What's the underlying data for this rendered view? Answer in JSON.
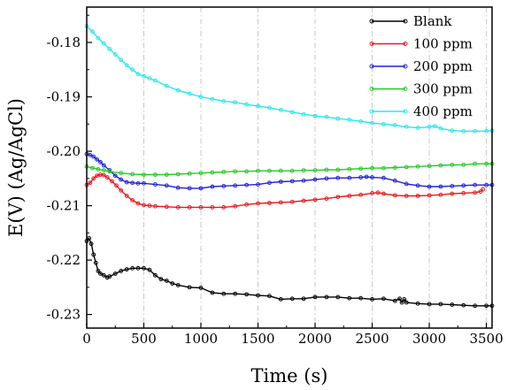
{
  "chart_data": {
    "type": "line",
    "title": "",
    "xlabel": "Time (s)",
    "ylabel": "E(V) (Ag/AgCl)",
    "xlim": [
      0,
      3550
    ],
    "ylim": [
      -0.2325,
      -0.1735
    ],
    "xticks": [
      0,
      500,
      1000,
      1500,
      2000,
      2500,
      3000,
      3500
    ],
    "xtick_labels": [
      "0",
      "500",
      "1000",
      "1500",
      "2000",
      "2500",
      "3000",
      "3500"
    ],
    "yticks": [
      -0.18,
      -0.19,
      -0.2,
      -0.21,
      -0.22,
      -0.23
    ],
    "ytick_labels": [
      "-0.18",
      "-0.19",
      "-0.20",
      "-0.21",
      "-0.22",
      "-0.23"
    ],
    "grid": "vertical dash-dot lines at x ticks",
    "legend_position": "top-right",
    "series": [
      {
        "name": "Blank",
        "color": "#000000",
        "x": [
          0,
          20,
          40,
          60,
          80,
          100,
          120,
          150,
          180,
          200,
          250,
          300,
          350,
          400,
          450,
          500,
          550,
          600,
          650,
          700,
          750,
          800,
          900,
          1000,
          1100,
          1200,
          1300,
          1400,
          1500,
          1600,
          1700,
          1800,
          1900,
          2000,
          2100,
          2200,
          2300,
          2400,
          2500,
          2600,
          2700,
          2740,
          2760,
          2780,
          2800,
          2900,
          3000,
          3100,
          3200,
          3300,
          3400,
          3500,
          3550
        ],
        "y": [
          -0.2165,
          -0.216,
          -0.217,
          -0.219,
          -0.2205,
          -0.222,
          -0.2225,
          -0.2228,
          -0.2232,
          -0.223,
          -0.2225,
          -0.222,
          -0.2217,
          -0.2215,
          -0.2215,
          -0.2215,
          -0.2218,
          -0.2228,
          -0.2235,
          -0.2238,
          -0.2243,
          -0.2246,
          -0.225,
          -0.2251,
          -0.226,
          -0.2262,
          -0.2262,
          -0.2263,
          -0.2265,
          -0.2266,
          -0.2272,
          -0.2271,
          -0.2271,
          -0.2268,
          -0.2268,
          -0.2268,
          -0.227,
          -0.227,
          -0.2272,
          -0.2271,
          -0.2275,
          -0.2271,
          -0.2278,
          -0.2272,
          -0.2278,
          -0.228,
          -0.2281,
          -0.2281,
          -0.2282,
          -0.2283,
          -0.2284,
          -0.2284,
          -0.2284
        ]
      },
      {
        "name": "100 ppm",
        "color": "#e8191c",
        "x": [
          0,
          30,
          60,
          90,
          120,
          150,
          180,
          220,
          260,
          300,
          350,
          400,
          450,
          500,
          550,
          600,
          700,
          800,
          900,
          1000,
          1100,
          1200,
          1300,
          1400,
          1500,
          1600,
          1700,
          1800,
          1900,
          2000,
          2100,
          2200,
          2300,
          2400,
          2500,
          2550,
          2600,
          2700,
          2800,
          2900,
          3000,
          3100,
          3200,
          3300,
          3400,
          3450,
          3470
        ],
        "y": [
          -0.2062,
          -0.2058,
          -0.205,
          -0.2045,
          -0.2043,
          -0.2044,
          -0.2048,
          -0.2055,
          -0.2063,
          -0.2072,
          -0.2082,
          -0.209,
          -0.2096,
          -0.2099,
          -0.21,
          -0.2101,
          -0.2102,
          -0.2103,
          -0.2103,
          -0.2103,
          -0.2103,
          -0.2103,
          -0.2101,
          -0.2098,
          -0.2096,
          -0.2095,
          -0.2094,
          -0.2093,
          -0.2091,
          -0.2089,
          -0.2087,
          -0.2084,
          -0.2082,
          -0.208,
          -0.2077,
          -0.2076,
          -0.2078,
          -0.2081,
          -0.2082,
          -0.2082,
          -0.2081,
          -0.208,
          -0.2078,
          -0.2077,
          -0.2076,
          -0.2074,
          -0.207
        ]
      },
      {
        "name": "200 ppm",
        "color": "#1f22d6",
        "x": [
          0,
          30,
          60,
          90,
          120,
          150,
          200,
          250,
          300,
          350,
          400,
          450,
          500,
          600,
          700,
          800,
          900,
          1000,
          1100,
          1200,
          1300,
          1400,
          1500,
          1600,
          1700,
          1800,
          1900,
          2000,
          2100,
          2200,
          2300,
          2400,
          2450,
          2500,
          2600,
          2700,
          2800,
          2900,
          3000,
          3100,
          3200,
          3300,
          3400,
          3500,
          3550
        ],
        "y": [
          -0.2005,
          -0.2007,
          -0.201,
          -0.2015,
          -0.202,
          -0.2026,
          -0.2035,
          -0.2045,
          -0.2052,
          -0.2057,
          -0.2058,
          -0.2059,
          -0.2059,
          -0.2061,
          -0.2063,
          -0.2067,
          -0.2068,
          -0.2068,
          -0.2065,
          -0.2064,
          -0.2063,
          -0.2062,
          -0.2061,
          -0.2058,
          -0.2056,
          -0.2055,
          -0.2054,
          -0.2052,
          -0.205,
          -0.2049,
          -0.2049,
          -0.2048,
          -0.2047,
          -0.2048,
          -0.2049,
          -0.2054,
          -0.206,
          -0.2063,
          -0.2065,
          -0.2065,
          -0.2064,
          -0.2063,
          -0.2062,
          -0.2062,
          -0.2062
        ]
      },
      {
        "name": "300 ppm",
        "color": "#22cc22",
        "x": [
          0,
          50,
          100,
          150,
          200,
          300,
          400,
          500,
          600,
          700,
          800,
          900,
          1000,
          1100,
          1200,
          1300,
          1400,
          1500,
          1600,
          1700,
          1800,
          1900,
          2000,
          2100,
          2200,
          2300,
          2400,
          2500,
          2600,
          2700,
          2800,
          2900,
          3000,
          3100,
          3200,
          3300,
          3400,
          3500,
          3550
        ],
        "y": [
          -0.2028,
          -0.2031,
          -0.2033,
          -0.2035,
          -0.2037,
          -0.204,
          -0.2042,
          -0.2043,
          -0.2043,
          -0.2043,
          -0.2042,
          -0.2041,
          -0.204,
          -0.2039,
          -0.2038,
          -0.2037,
          -0.2037,
          -0.2036,
          -0.2036,
          -0.2036,
          -0.2036,
          -0.2035,
          -0.2035,
          -0.2034,
          -0.2034,
          -0.2033,
          -0.2032,
          -0.2031,
          -0.2031,
          -0.203,
          -0.2029,
          -0.2028,
          -0.2027,
          -0.2026,
          -0.2025,
          -0.2025,
          -0.2023,
          -0.2023,
          -0.2023
        ]
      },
      {
        "name": "400 ppm",
        "color": "#28e8f0",
        "x": [
          0,
          50,
          100,
          150,
          200,
          250,
          300,
          350,
          400,
          450,
          500,
          550,
          600,
          700,
          800,
          900,
          1000,
          1100,
          1200,
          1300,
          1400,
          1500,
          1600,
          1700,
          1800,
          1900,
          2000,
          2100,
          2200,
          2300,
          2400,
          2500,
          2600,
          2700,
          2800,
          2900,
          3000,
          3050,
          3100,
          3200,
          3300,
          3400,
          3500,
          3550
        ],
        "y": [
          -0.177,
          -0.178,
          -0.1792,
          -0.1802,
          -0.1812,
          -0.1822,
          -0.1832,
          -0.1842,
          -0.185,
          -0.1858,
          -0.1862,
          -0.1866,
          -0.187,
          -0.188,
          -0.1888,
          -0.1894,
          -0.19,
          -0.1904,
          -0.1908,
          -0.191,
          -0.1914,
          -0.1917,
          -0.192,
          -0.1924,
          -0.1928,
          -0.1932,
          -0.1935,
          -0.1937,
          -0.194,
          -0.1942,
          -0.1945,
          -0.1948,
          -0.195,
          -0.1952,
          -0.1955,
          -0.1957,
          -0.1955,
          -0.1954,
          -0.1958,
          -0.1962,
          -0.1963,
          -0.1963,
          -0.1963,
          -0.1962
        ]
      }
    ]
  }
}
